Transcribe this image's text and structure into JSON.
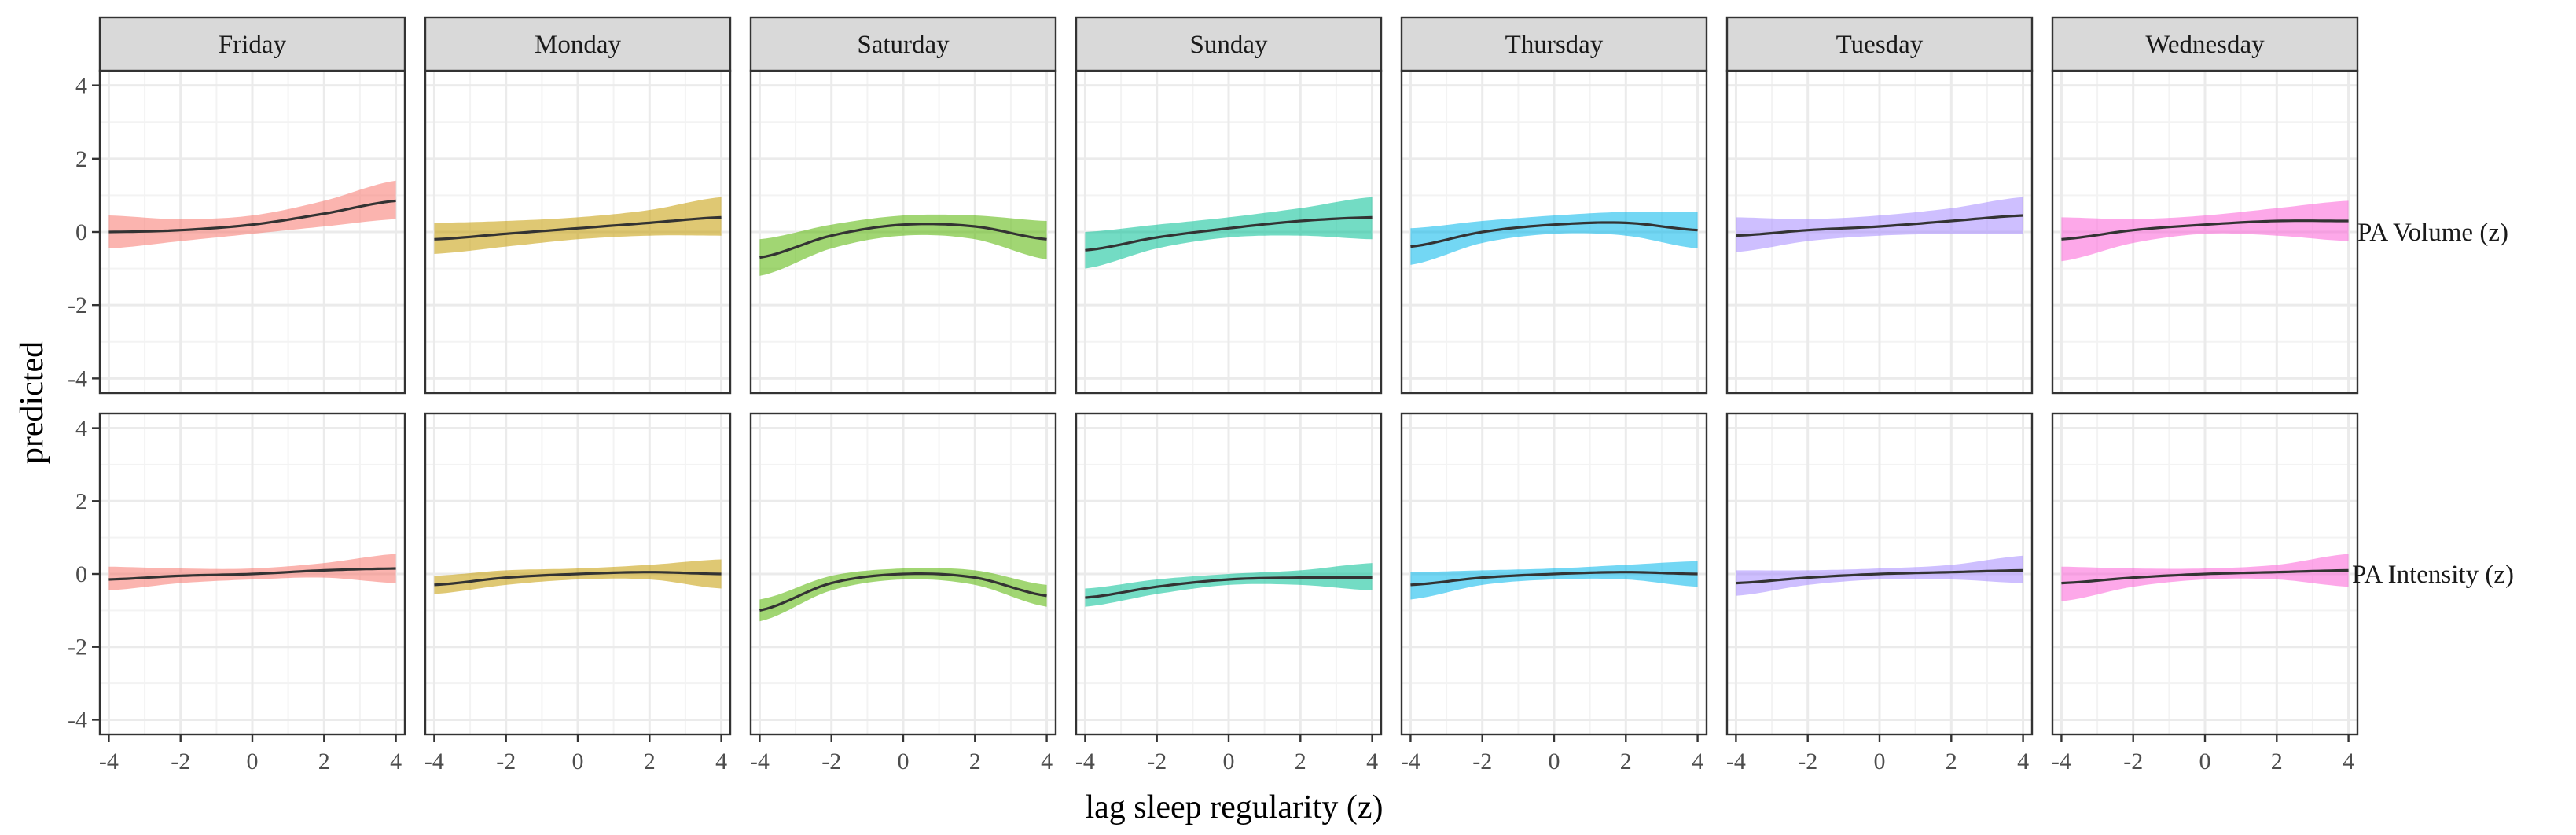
{
  "chart_data": {
    "type": "line",
    "xlabel": "lag sleep regularity (z)",
    "ylabel": "predicted",
    "xlim": [
      -4.25,
      4.25
    ],
    "ylim": [
      -4.4,
      4.4
    ],
    "x_ticks": [
      -4,
      -2,
      0,
      2,
      4
    ],
    "y_ticks": [
      -4,
      -2,
      0,
      2,
      4
    ],
    "x_tick_labels": [
      "-4",
      "-2",
      "0",
      "2",
      "4"
    ],
    "y_tick_labels": [
      "-4",
      "-2",
      "0",
      "2",
      "4"
    ],
    "grid": true,
    "legend": "none",
    "facet_columns": [
      "Friday",
      "Monday",
      "Saturday",
      "Sunday",
      "Thursday",
      "Tuesday",
      "Wednesday"
    ],
    "facet_rows": [
      "PA Volume (z)",
      "PA Intensity (z)"
    ],
    "colors": {
      "Friday": "#F8766D",
      "Monday": "#C49A00",
      "Saturday": "#53B400",
      "Sunday": "#00C094",
      "Thursday": "#00B6EB",
      "Tuesday": "#A58AFF",
      "Wednesday": "#FB61D7"
    },
    "x": [
      -4,
      -2,
      0,
      2,
      4
    ],
    "panels": [
      {
        "row": "PA Volume (z)",
        "col": "Friday",
        "fit": [
          0.0,
          0.05,
          0.2,
          0.5,
          0.85
        ],
        "lower": [
          -0.45,
          -0.25,
          -0.05,
          0.15,
          0.35
        ],
        "upper": [
          0.45,
          0.35,
          0.45,
          0.85,
          1.4
        ]
      },
      {
        "row": "PA Volume (z)",
        "col": "Monday",
        "fit": [
          -0.2,
          -0.05,
          0.1,
          0.25,
          0.4
        ],
        "lower": [
          -0.6,
          -0.4,
          -0.2,
          -0.1,
          -0.1
        ],
        "upper": [
          0.25,
          0.3,
          0.4,
          0.6,
          0.95
        ]
      },
      {
        "row": "PA Volume (z)",
        "col": "Saturday",
        "fit": [
          -0.7,
          -0.1,
          0.2,
          0.15,
          -0.2
        ],
        "lower": [
          -1.2,
          -0.45,
          -0.1,
          -0.2,
          -0.75
        ],
        "upper": [
          -0.2,
          0.2,
          0.45,
          0.45,
          0.3
        ]
      },
      {
        "row": "PA Volume (z)",
        "col": "Sunday",
        "fit": [
          -0.5,
          -0.15,
          0.1,
          0.3,
          0.4
        ],
        "lower": [
          -1.0,
          -0.45,
          -0.15,
          -0.1,
          -0.2
        ],
        "upper": [
          0.0,
          0.2,
          0.4,
          0.65,
          0.95
        ]
      },
      {
        "row": "PA Volume (z)",
        "col": "Thursday",
        "fit": [
          -0.4,
          0.0,
          0.2,
          0.25,
          0.05
        ],
        "lower": [
          -0.9,
          -0.3,
          -0.05,
          -0.1,
          -0.45
        ],
        "upper": [
          0.1,
          0.3,
          0.45,
          0.55,
          0.55
        ]
      },
      {
        "row": "PA Volume (z)",
        "col": "Tuesday",
        "fit": [
          -0.1,
          0.05,
          0.15,
          0.3,
          0.45
        ],
        "lower": [
          -0.55,
          -0.25,
          -0.1,
          -0.05,
          -0.05
        ],
        "upper": [
          0.4,
          0.35,
          0.45,
          0.65,
          0.95
        ]
      },
      {
        "row": "PA Volume (z)",
        "col": "Wednesday",
        "fit": [
          -0.2,
          0.05,
          0.2,
          0.3,
          0.3
        ],
        "lower": [
          -0.8,
          -0.3,
          -0.05,
          -0.1,
          -0.25
        ],
        "upper": [
          0.4,
          0.35,
          0.45,
          0.65,
          0.85
        ]
      },
      {
        "row": "PA Intensity (z)",
        "col": "Friday",
        "fit": [
          -0.15,
          -0.05,
          0.0,
          0.1,
          0.15
        ],
        "lower": [
          -0.45,
          -0.25,
          -0.15,
          -0.1,
          -0.25
        ],
        "upper": [
          0.2,
          0.15,
          0.15,
          0.3,
          0.55
        ]
      },
      {
        "row": "PA Intensity (z)",
        "col": "Monday",
        "fit": [
          -0.3,
          -0.1,
          0.0,
          0.05,
          0.0
        ],
        "lower": [
          -0.55,
          -0.3,
          -0.15,
          -0.15,
          -0.4
        ],
        "upper": [
          -0.05,
          0.1,
          0.15,
          0.25,
          0.4
        ]
      },
      {
        "row": "PA Intensity (z)",
        "col": "Saturday",
        "fit": [
          -1.0,
          -0.25,
          0.0,
          -0.1,
          -0.6
        ],
        "lower": [
          -1.3,
          -0.45,
          -0.15,
          -0.3,
          -0.9
        ],
        "upper": [
          -0.7,
          -0.05,
          0.15,
          0.1,
          -0.3
        ]
      },
      {
        "row": "PA Intensity (z)",
        "col": "Sunday",
        "fit": [
          -0.65,
          -0.35,
          -0.15,
          -0.1,
          -0.1
        ],
        "lower": [
          -0.9,
          -0.55,
          -0.3,
          -0.3,
          -0.45
        ],
        "upper": [
          -0.4,
          -0.15,
          0.0,
          0.1,
          0.3
        ]
      },
      {
        "row": "PA Intensity (z)",
        "col": "Thursday",
        "fit": [
          -0.3,
          -0.1,
          0.0,
          0.05,
          0.0
        ],
        "lower": [
          -0.7,
          -0.3,
          -0.15,
          -0.15,
          -0.35
        ],
        "upper": [
          0.05,
          0.1,
          0.15,
          0.25,
          0.35
        ]
      },
      {
        "row": "PA Intensity (z)",
        "col": "Tuesday",
        "fit": [
          -0.25,
          -0.1,
          0.0,
          0.05,
          0.1
        ],
        "lower": [
          -0.6,
          -0.3,
          -0.15,
          -0.15,
          -0.25
        ],
        "upper": [
          0.1,
          0.1,
          0.15,
          0.25,
          0.5
        ]
      },
      {
        "row": "PA Intensity (z)",
        "col": "Wednesday",
        "fit": [
          -0.25,
          -0.1,
          0.0,
          0.05,
          0.1
        ],
        "lower": [
          -0.75,
          -0.35,
          -0.15,
          -0.15,
          -0.35
        ],
        "upper": [
          0.2,
          0.15,
          0.15,
          0.25,
          0.55
        ]
      }
    ]
  }
}
